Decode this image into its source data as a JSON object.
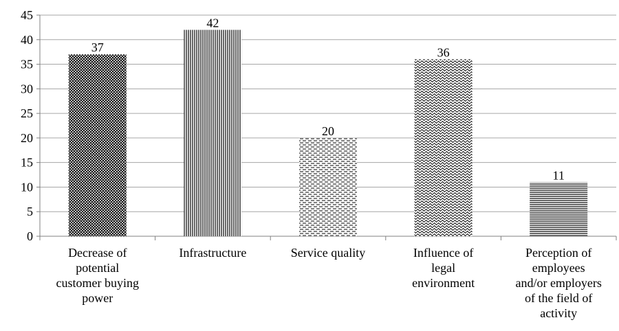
{
  "chart_data": {
    "type": "bar",
    "categories": [
      "Decrease of\npotential\ncustomer buying\npower",
      "Infrastructure",
      "Service quality",
      "Influence of\nlegal\nenvironment",
      "Perception of\nemployees\nand/or employers\nof the field of\nactivity"
    ],
    "values": [
      37,
      42,
      20,
      36,
      11
    ],
    "color": "#000000",
    "ylim": [
      0,
      45
    ],
    "yticks": [
      0,
      5,
      10,
      15,
      20,
      25,
      30,
      35,
      40,
      45
    ],
    "grid": true
  }
}
